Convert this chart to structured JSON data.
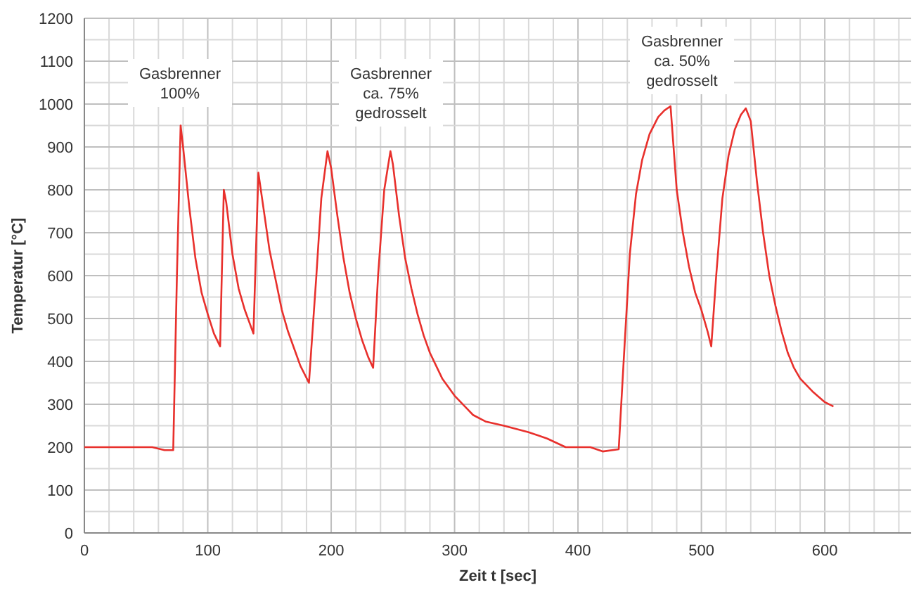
{
  "chart_data": {
    "type": "line",
    "xlabel": "Zeit t [sec]",
    "ylabel": "Temperatur [°C]",
    "grid": true,
    "marker": "none",
    "line_style": "solid",
    "xlim": [
      0,
      670
    ],
    "ylim": [
      0,
      1200
    ],
    "xticks": [
      0,
      {
        "value": 20,
        "label": null
      },
      {
        "value": 40,
        "label": null
      },
      {
        "value": 60,
        "label": null
      },
      {
        "value": 80,
        "label": null
      },
      100,
      {
        "value": 120,
        "label": null
      },
      {
        "value": 140,
        "label": null
      },
      {
        "value": 160,
        "label": null
      },
      {
        "value": 180,
        "label": null
      },
      200,
      {
        "value": 220,
        "label": null
      },
      {
        "value": 240,
        "label": null
      },
      {
        "value": 260,
        "label": null
      },
      {
        "value": 280,
        "label": null
      },
      300,
      {
        "value": 320,
        "label": null
      },
      {
        "value": 340,
        "label": null
      },
      {
        "value": 360,
        "label": null
      },
      {
        "value": 380,
        "label": null
      },
      400,
      {
        "value": 420,
        "label": null
      },
      {
        "value": 440,
        "label": null
      },
      {
        "value": 460,
        "label": null
      },
      {
        "value": 480,
        "label": null
      },
      500,
      {
        "value": 520,
        "label": null
      },
      {
        "value": 540,
        "label": null
      },
      {
        "value": 560,
        "label": null
      },
      {
        "value": 580,
        "label": null
      },
      600,
      {
        "value": 620,
        "label": null
      },
      {
        "value": 640,
        "label": null
      },
      {
        "value": 660,
        "label": null
      }
    ],
    "yticks": [
      0,
      {
        "value": 50,
        "label": null
      },
      100,
      {
        "value": 150,
        "label": null
      },
      200,
      {
        "value": 250,
        "label": null
      },
      300,
      {
        "value": 350,
        "label": null
      },
      400,
      {
        "value": 450,
        "label": null
      },
      500,
      {
        "value": 550,
        "label": null
      },
      600,
      {
        "value": 650,
        "label": null
      },
      700,
      {
        "value": 750,
        "label": null
      },
      800,
      {
        "value": 850,
        "label": null
      },
      900,
      {
        "value": 950,
        "label": null
      },
      1000,
      {
        "value": 1050,
        "label": null
      },
      1100,
      {
        "value": 1150,
        "label": null
      },
      1200
    ],
    "annotations": [
      "Gasbrenner\n100%",
      "Gasbrenner\nca. 75%\ngedrosselt",
      "Gasbrenner\nca. 50%\ngedrosselt"
    ],
    "series": [
      {
        "color": "#e8302c",
        "x": [
          0,
          20,
          40,
          55,
          65,
          72,
          75,
          78,
          80,
          85,
          90,
          95,
          100,
          105,
          110,
          113,
          115,
          120,
          125,
          130,
          137,
          141,
          145,
          150,
          155,
          160,
          165,
          170,
          175,
          182,
          188,
          192,
          197,
          200,
          205,
          210,
          215,
          220,
          225,
          230,
          234,
          238,
          243,
          248,
          250,
          255,
          260,
          265,
          270,
          275,
          280,
          290,
          300,
          310,
          315,
          325,
          340,
          360,
          375,
          390,
          410,
          420,
          433,
          437,
          442,
          447,
          452,
          458,
          465,
          470,
          475,
          480,
          485,
          490,
          495,
          500,
          505,
          508,
          512,
          517,
          522,
          527,
          532,
          536,
          540,
          545,
          550,
          555,
          560,
          565,
          570,
          575,
          580,
          590,
          600,
          607
        ],
        "values": [
          200,
          200,
          200,
          200,
          193,
          193,
          600,
          950,
          900,
          760,
          640,
          560,
          510,
          465,
          435,
          800,
          770,
          650,
          570,
          520,
          465,
          840,
          760,
          660,
          590,
          520,
          470,
          430,
          390,
          350,
          600,
          780,
          890,
          850,
          740,
          640,
          560,
          500,
          450,
          410,
          385,
          600,
          800,
          890,
          860,
          740,
          640,
          570,
          510,
          460,
          420,
          360,
          320,
          290,
          275,
          260,
          250,
          235,
          220,
          200,
          200,
          190,
          195,
          400,
          650,
          790,
          870,
          930,
          970,
          985,
          995,
          800,
          700,
          620,
          560,
          520,
          470,
          435,
          600,
          780,
          880,
          940,
          975,
          990,
          960,
          820,
          700,
          600,
          530,
          470,
          420,
          385,
          360,
          330,
          305,
          295
        ]
      }
    ]
  }
}
